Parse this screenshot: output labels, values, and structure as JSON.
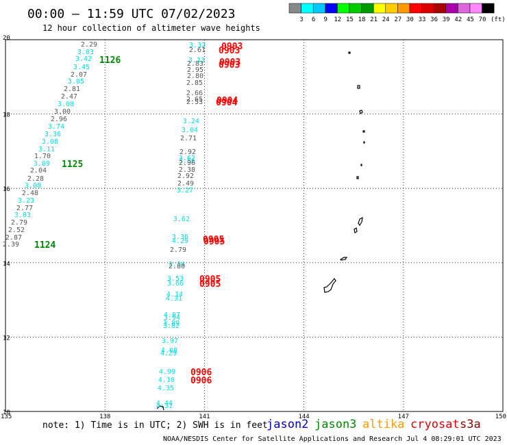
{
  "header": {
    "title": "00:00 – 11:59 UTC 07/02/2023",
    "subtitle": "12 hour collection of altimeter wave heights"
  },
  "legend": {
    "unit": "(ft)",
    "ticks": [
      "3",
      "6",
      "9",
      "12",
      "15",
      "18",
      "21",
      "24",
      "27",
      "30",
      "33",
      "36",
      "39",
      "42",
      "45",
      "70"
    ],
    "colors": [
      "#888888",
      "#00ffff",
      "#00c8ff",
      "#0000ff",
      "#00ff00",
      "#00cc00",
      "#009900",
      "#ffff00",
      "#ffcc00",
      "#ff9900",
      "#ff0000",
      "#dd0000",
      "#aa0000",
      "#aa00aa",
      "#dd66dd",
      "#ff88ff",
      "#000000"
    ]
  },
  "axes": {
    "x_ticks": [
      "135",
      "138",
      "141",
      "144",
      "147",
      "150"
    ],
    "y_ticks": [
      "20",
      "18",
      "16",
      "14",
      "12",
      "10"
    ],
    "lon_range": [
      135,
      150
    ],
    "lat_range": [
      10,
      20
    ]
  },
  "colors": {
    "gray": "#555555",
    "cyan": "#00dcdc",
    "green": "#008800",
    "red": "#ff0000"
  },
  "tracks": [
    {
      "id": "west",
      "points": [
        {
          "v": "2.29",
          "c": "gray"
        },
        {
          "v": "3.03",
          "c": "cyan"
        },
        {
          "v": "3.42",
          "c": "cyan"
        },
        {
          "v": "3.45",
          "c": "cyan"
        },
        {
          "v": "2.07",
          "c": "gray"
        },
        {
          "v": "3.05",
          "c": "cyan"
        },
        {
          "v": "2.81",
          "c": "gray"
        },
        {
          "v": "2.47",
          "c": "gray"
        },
        {
          "v": "3.08",
          "c": "cyan"
        },
        {
          "v": "3.00",
          "c": "gray"
        },
        {
          "v": "2.96",
          "c": "gray"
        },
        {
          "v": "3.74",
          "c": "cyan"
        },
        {
          "v": "3.36",
          "c": "cyan"
        },
        {
          "v": "3.08",
          "c": "cyan"
        },
        {
          "v": "3.11",
          "c": "cyan"
        },
        {
          "v": "1.70",
          "c": "gray"
        },
        {
          "v": "3.09",
          "c": "cyan"
        },
        {
          "v": "2.04",
          "c": "gray"
        },
        {
          "v": "2.28",
          "c": "gray"
        },
        {
          "v": "3.08",
          "c": "cyan"
        },
        {
          "v": "2.48",
          "c": "gray"
        },
        {
          "v": "3.23",
          "c": "cyan"
        },
        {
          "v": "2.77",
          "c": "gray"
        },
        {
          "v": "3.03",
          "c": "cyan"
        },
        {
          "v": "2.79",
          "c": "gray"
        },
        {
          "v": "2.52",
          "c": "gray"
        },
        {
          "v": "2.87",
          "c": "gray"
        },
        {
          "v": "2.39",
          "c": "gray"
        }
      ]
    },
    {
      "id": "east",
      "points": [
        {
          "v": "3.32",
          "c": "cyan"
        },
        {
          "v": "2.61",
          "c": "gray"
        },
        {
          "v": "3.13",
          "c": "cyan"
        },
        {
          "v": "2.83",
          "c": "gray"
        },
        {
          "v": "2.95",
          "c": "gray"
        },
        {
          "v": "2.80",
          "c": "gray"
        },
        {
          "v": "2.85",
          "c": "gray"
        },
        {
          "v": "2.66",
          "c": "gray"
        },
        {
          "v": "2.65",
          "c": "gray"
        },
        {
          "v": "2.53",
          "c": "gray"
        },
        {
          "v": "3.24",
          "c": "cyan"
        },
        {
          "v": "3.04",
          "c": "cyan"
        },
        {
          "v": "2.71",
          "c": "gray"
        },
        {
          "v": "2.92",
          "c": "gray"
        },
        {
          "v": "3.62",
          "c": "cyan"
        },
        {
          "v": "3.56",
          "c": "cyan"
        },
        {
          "v": "2.96",
          "c": "gray"
        },
        {
          "v": "2.38",
          "c": "gray"
        },
        {
          "v": "2.92",
          "c": "gray"
        },
        {
          "v": "2.49",
          "c": "gray"
        },
        {
          "v": "3.27",
          "c": "cyan"
        },
        {
          "v": "3.62",
          "c": "cyan"
        },
        {
          "v": "3.36",
          "c": "cyan"
        },
        {
          "v": "4.29",
          "c": "cyan"
        },
        {
          "v": "2.79",
          "c": "gray"
        },
        {
          "v": "3.34",
          "c": "cyan"
        },
        {
          "v": "2.80",
          "c": "gray"
        },
        {
          "v": "3.53",
          "c": "cyan"
        },
        {
          "v": "3.66",
          "c": "cyan"
        },
        {
          "v": "4.14",
          "c": "cyan"
        },
        {
          "v": "4.31",
          "c": "cyan"
        },
        {
          "v": "4.07",
          "c": "cyan"
        },
        {
          "v": "3.94",
          "c": "cyan"
        },
        {
          "v": "3.89",
          "c": "cyan"
        },
        {
          "v": "3.82",
          "c": "cyan"
        },
        {
          "v": "3.97",
          "c": "cyan"
        },
        {
          "v": "4.08",
          "c": "cyan"
        },
        {
          "v": "4.29",
          "c": "cyan"
        },
        {
          "v": "4.99",
          "c": "cyan"
        },
        {
          "v": "4.10",
          "c": "cyan"
        },
        {
          "v": "4.35",
          "c": "cyan"
        },
        {
          "v": "4.44",
          "c": "cyan"
        },
        {
          "v": "4.31",
          "c": "cyan"
        }
      ]
    }
  ],
  "time_labels": [
    {
      "t": "1126",
      "c": "green"
    },
    {
      "t": "1125",
      "c": "green"
    },
    {
      "t": "1124",
      "c": "green"
    },
    {
      "t": "0903",
      "c": "red"
    },
    {
      "t": "0903",
      "c": "red"
    },
    {
      "t": "0903",
      "c": "red"
    },
    {
      "t": "0903",
      "c": "red"
    },
    {
      "t": "0904",
      "c": "red"
    },
    {
      "t": "0904",
      "c": "red"
    },
    {
      "t": "0905",
      "c": "red"
    },
    {
      "t": "0905",
      "c": "red"
    },
    {
      "t": "0905",
      "c": "red"
    },
    {
      "t": "0905",
      "c": "red"
    },
    {
      "t": "0906",
      "c": "red"
    },
    {
      "t": "0906",
      "c": "red"
    }
  ],
  "footer": {
    "note": "note: 1) Time is in UTC; 2) SWH is in feet",
    "satellites": [
      {
        "name": "jason2",
        "color": "#0000cc"
      },
      {
        "name": "jason3",
        "color": "#008800"
      },
      {
        "name": "altika",
        "color": "#ff9900"
      },
      {
        "name": "cryosat",
        "color": "#dd0000"
      },
      {
        "name": "s3a",
        "color": "#880000"
      }
    ],
    "credit": "NOAA/NESDIS Center for Satellite Applications and Research   Jul  4 08:29:01 UTC 2023"
  }
}
